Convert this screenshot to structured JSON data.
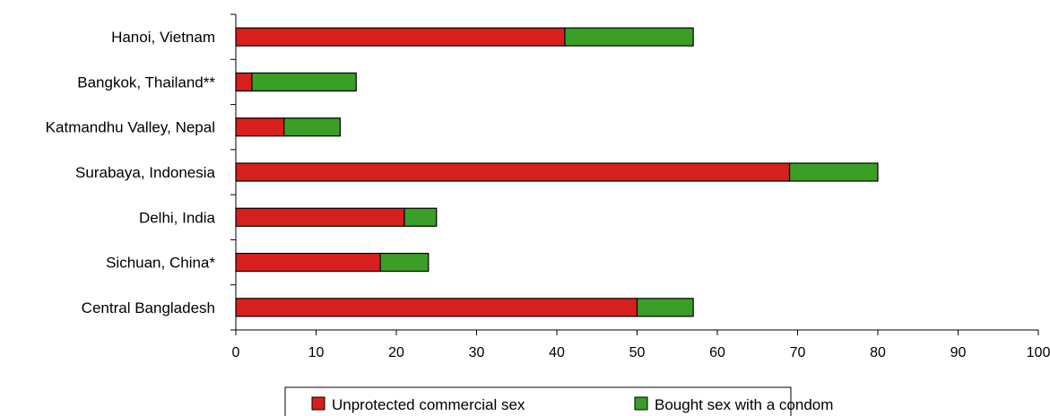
{
  "chart_data": {
    "type": "bar",
    "orientation": "horizontal",
    "stacked": true,
    "categories": [
      "Hanoi, Vietnam",
      "Bangkok, Thailand**",
      "Katmandhu Valley, Nepal",
      "Surabaya, Indonesia",
      "Delhi, India",
      "Sichuan, China*",
      "Central Bangladesh"
    ],
    "series": [
      {
        "name": "Unprotected commercial sex",
        "color": "#d7201e",
        "values": [
          41,
          2,
          6,
          69,
          21,
          18,
          50
        ]
      },
      {
        "name": "Bought sex with a condom",
        "color": "#3b9e26",
        "values": [
          16,
          13,
          7,
          11,
          4,
          6,
          7
        ]
      }
    ],
    "xlim": [
      0,
      100
    ],
    "xticks": [
      0,
      10,
      20,
      30,
      40,
      50,
      60,
      70,
      80,
      90,
      100
    ],
    "grid": false,
    "legend_position": "bottom"
  }
}
